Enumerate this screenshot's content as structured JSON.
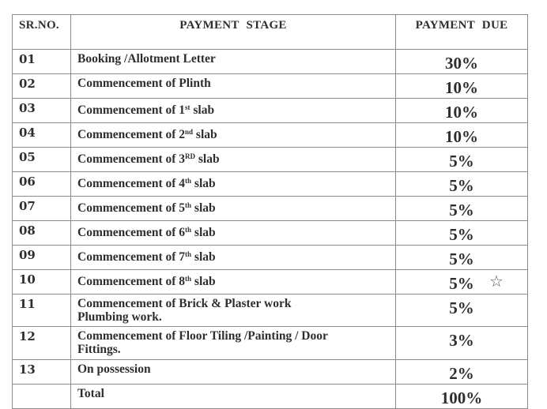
{
  "header": {
    "sr": "SR.NO.",
    "stage": "PAYMENT   STAGE",
    "due": "PAYMENT  DUE"
  },
  "rows": [
    {
      "sr": "01",
      "pre": "Booking  /Allotment Letter",
      "sup": "",
      "post": "",
      "line2": "",
      "due": "30%"
    },
    {
      "sr": "02",
      "pre": "Commencement of Plinth",
      "sup": "",
      "post": "",
      "line2": "",
      "due": "10%"
    },
    {
      "sr": "03",
      "pre": "Commencement of 1",
      "sup": "st",
      "post": " slab",
      "line2": "",
      "due": "10%"
    },
    {
      "sr": "04",
      "pre": "Commencement of 2",
      "sup": "nd",
      "post": " slab",
      "line2": "",
      "due": "10%"
    },
    {
      "sr": "05",
      "pre": "Commencement of 3",
      "sup": "RD",
      "post": " slab",
      "line2": "",
      "due": "5%"
    },
    {
      "sr": "06",
      "pre": "Commencement of 4",
      "sup": "th",
      "post": " slab",
      "line2": "",
      "due": "5%"
    },
    {
      "sr": "07",
      "pre": "Commencement of 5",
      "sup": "th",
      "post": " slab",
      "line2": "",
      "due": "5%"
    },
    {
      "sr": "08",
      "pre": "Commencement of 6",
      "sup": "th",
      "post": " slab",
      "line2": "",
      "due": "5%"
    },
    {
      "sr": "09",
      "pre": "Commencement of 7",
      "sup": "th",
      "post": " slab",
      "line2": "",
      "due": "5%"
    },
    {
      "sr": "10",
      "pre": "Commencement of 8",
      "sup": "th",
      "post": " slab",
      "line2": "",
      "due": "5%",
      "mark": "star-icon"
    },
    {
      "sr": "11",
      "pre": "Commencement of Brick & Plaster work",
      "sup": "",
      "post": "",
      "line2": "Plumbing work.",
      "due": "5%"
    },
    {
      "sr": "12",
      "pre": "Commencement of Floor Tiling /Painting / Door",
      "sup": "",
      "post": "",
      "line2": "Fittings.",
      "due": "3%"
    },
    {
      "sr": "13",
      "pre": "On  possession",
      "sup": "",
      "post": "",
      "line2": "",
      "due": "2%"
    }
  ],
  "total": {
    "label": "Total",
    "due": "100%"
  }
}
